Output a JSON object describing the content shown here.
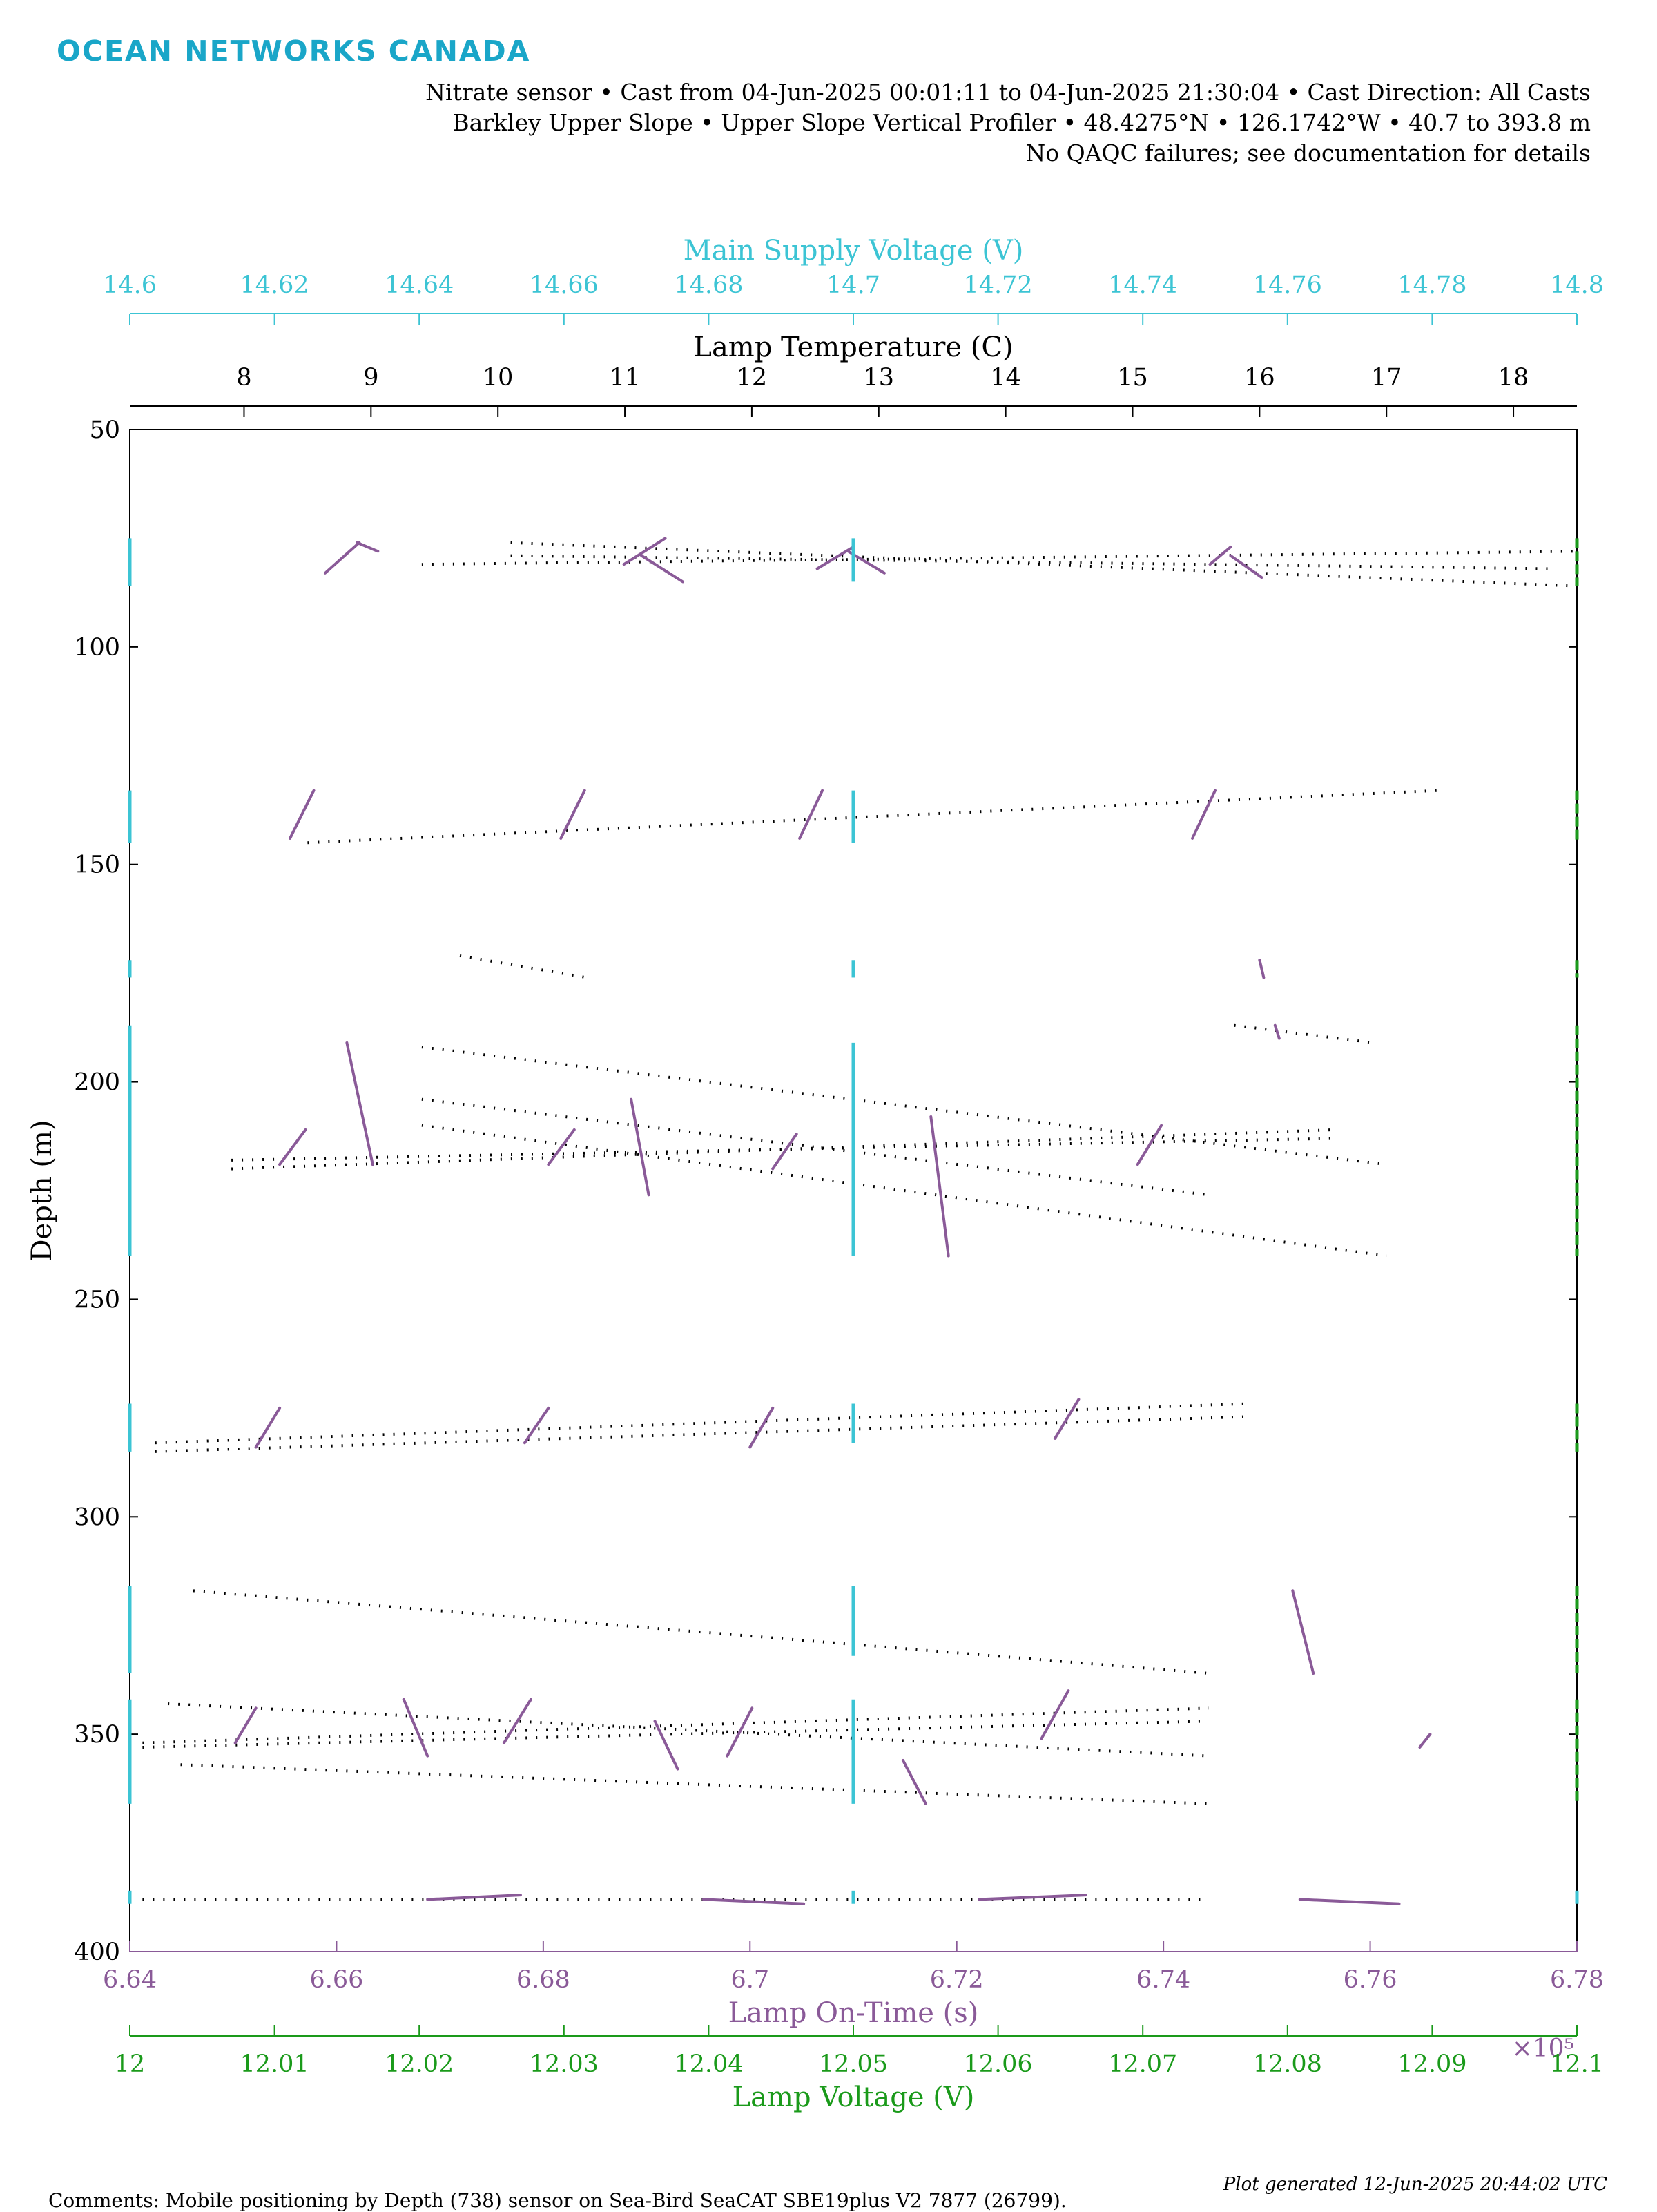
{
  "brand": "OCEAN NETWORKS CANADA",
  "header": {
    "line1": "Nitrate sensor • Cast from 04-Jun-2025 00:01:11 to 04-Jun-2025 21:30:04 • Cast Direction: All Casts",
    "line2": "Barkley Upper Slope • Upper Slope Vertical Profiler • 48.4275°N • 126.1742°W • 40.7 to 393.8 m",
    "line3": "No QAQC failures; see documentation for details"
  },
  "footer": {
    "comments": "Comments: Mobile positioning by Depth (738) sensor on Sea-Bird SeaCAT SBE19plus V2 7877 (26799).",
    "generated": "Plot generated 12-Jun-2025 20:44:02 UTC"
  },
  "colors": {
    "brand": "#1aa6c8",
    "supply_voltage": "#3cc4d4",
    "lamp_on_time": "#8a5a98",
    "lamp_voltage": "#1a9a1a",
    "lamp_temperature": "#000000"
  },
  "chart_data": {
    "type": "scatter",
    "ylabel": "Depth (m)",
    "ylim": [
      50,
      400
    ],
    "yreversed": true,
    "yticks": [
      "50",
      "100",
      "150",
      "200",
      "250",
      "300",
      "350",
      "400"
    ],
    "grid": false,
    "axes": {
      "supply_voltage": {
        "label": "Main Supply Voltage (V)",
        "range": [
          14.6,
          14.8
        ],
        "ticks": [
          "14.6",
          "14.62",
          "14.64",
          "14.66",
          "14.68",
          "14.7",
          "14.72",
          "14.74",
          "14.76",
          "14.78",
          "14.8"
        ]
      },
      "lamp_temperature": {
        "label": "Lamp Temperature (C)",
        "range": [
          7.1,
          18.5
        ],
        "ticks": [
          "8",
          "9",
          "10",
          "11",
          "12",
          "13",
          "14",
          "15",
          "16",
          "17",
          "18"
        ]
      },
      "lamp_on_time": {
        "label": "Lamp On-Time (s)",
        "range": [
          6.64,
          6.78
        ],
        "ticks": [
          "6.64",
          "6.66",
          "6.68",
          "6.7",
          "6.72",
          "6.74",
          "6.76",
          "6.78"
        ],
        "exponent": "×10⁵"
      },
      "lamp_voltage": {
        "label": "Lamp Voltage (V)",
        "range": [
          12,
          12.1
        ],
        "ticks": [
          "12",
          "12.01",
          "12.02",
          "12.03",
          "12.04",
          "12.05",
          "12.06",
          "12.07",
          "12.08",
          "12.09",
          "12.1"
        ]
      }
    },
    "series": [
      {
        "name": "Lamp Temperature (C)",
        "marker": "dots",
        "segments": [
          {
            "x": [
              9.4,
              18.5
            ],
            "y": [
              81,
              78
            ]
          },
          {
            "x": [
              10.1,
              18.3
            ],
            "y": [
              79,
              82
            ]
          },
          {
            "x": [
              10.1,
              18.5
            ],
            "y": [
              76,
              86
            ]
          },
          {
            "x": [
              8.5,
              17.4
            ],
            "y": [
              145,
              133
            ]
          },
          {
            "x": [
              9.7,
              10.7
            ],
            "y": [
              171,
              176
            ]
          },
          {
            "x": [
              9.4,
              17.0
            ],
            "y": [
              192,
              219
            ]
          },
          {
            "x": [
              9.4,
              15.6
            ],
            "y": [
              204,
              226
            ]
          },
          {
            "x": [
              9.4,
              17.0
            ],
            "y": [
              210,
              240
            ]
          },
          {
            "x": [
              7.9,
              16.6
            ],
            "y": [
              220,
              211
            ]
          },
          {
            "x": [
              7.9,
              16.6
            ],
            "y": [
              218,
              213
            ]
          },
          {
            "x": [
              15.8,
              16.9
            ],
            "y": [
              187,
              191
            ]
          },
          {
            "x": [
              7.3,
              15.9
            ],
            "y": [
              283,
              274
            ]
          },
          {
            "x": [
              7.3,
              15.9
            ],
            "y": [
              285,
              277
            ]
          },
          {
            "x": [
              7.6,
              15.6
            ],
            "y": [
              317,
              336
            ]
          },
          {
            "x": [
              7.4,
              15.6
            ],
            "y": [
              343,
              355
            ]
          },
          {
            "x": [
              7.2,
              15.6
            ],
            "y": [
              352,
              344
            ]
          },
          {
            "x": [
              7.2,
              15.6
            ],
            "y": [
              353,
              347
            ]
          },
          {
            "x": [
              7.5,
              15.6
            ],
            "y": [
              357,
              366
            ]
          },
          {
            "x": [
              7.2,
              15.6
            ],
            "y": [
              388,
              388
            ]
          }
        ]
      },
      {
        "name": "Lamp On-Time (s)",
        "marker": "line",
        "segments": [
          {
            "x": [
              6.6589,
              6.6622
            ],
            "y": [
              83,
              76
            ]
          },
          {
            "x": [
              6.662,
              6.664
            ],
            "y": [
              76,
              78
            ]
          },
          {
            "x": [
              6.6878,
              6.6918
            ],
            "y": [
              81,
              75
            ]
          },
          {
            "x": [
              6.6895,
              6.6935
            ],
            "y": [
              79,
              85
            ]
          },
          {
            "x": [
              6.7065,
              6.71
            ],
            "y": [
              82,
              77
            ]
          },
          {
            "x": [
              6.7095,
              6.713
            ],
            "y": [
              78,
              83
            ]
          },
          {
            "x": [
              6.7445,
              6.7465
            ],
            "y": [
              81,
              77
            ]
          },
          {
            "x": [
              6.7465,
              6.7495
            ],
            "y": [
              79,
              84
            ]
          },
          {
            "x": [
              6.6555,
              6.6578
            ],
            "y": [
              144,
              133
            ]
          },
          {
            "x": [
              6.6817,
              6.684
            ],
            "y": [
              144,
              133
            ]
          },
          {
            "x": [
              6.7048,
              6.707
            ],
            "y": [
              144,
              133
            ]
          },
          {
            "x": [
              6.7428,
              6.745
            ],
            "y": [
              144,
              133
            ]
          },
          {
            "x": [
              6.661,
              6.6635
            ],
            "y": [
              191,
              219
            ]
          },
          {
            "x": [
              6.6545,
              6.657
            ],
            "y": [
              219,
              211
            ]
          },
          {
            "x": [
              6.6805,
              6.683
            ],
            "y": [
              219,
              211
            ]
          },
          {
            "x": [
              6.6885,
              6.6902
            ],
            "y": [
              204,
              226
            ]
          },
          {
            "x": [
              6.7022,
              6.7045
            ],
            "y": [
              220,
              212
            ]
          },
          {
            "x": [
              6.7175,
              6.7192
            ],
            "y": [
              208,
              240
            ]
          },
          {
            "x": [
              6.7375,
              6.7398
            ],
            "y": [
              219,
              210
            ]
          },
          {
            "x": [
              6.7493,
              6.7497
            ],
            "y": [
              172,
              176
            ]
          },
          {
            "x": [
              6.7508,
              6.7512
            ],
            "y": [
              187,
              190
            ]
          },
          {
            "x": [
              6.6522,
              6.6545
            ],
            "y": [
              284,
              275
            ]
          },
          {
            "x": [
              6.6782,
              6.6805
            ],
            "y": [
              283,
              275
            ]
          },
          {
            "x": [
              6.7,
              6.7022
            ],
            "y": [
              284,
              275
            ]
          },
          {
            "x": [
              6.7295,
              6.7318
            ],
            "y": [
              282,
              273
            ]
          },
          {
            "x": [
              6.7525,
              6.7545
            ],
            "y": [
              317,
              336
            ]
          },
          {
            "x": [
              6.6502,
              6.6522
            ],
            "y": [
              352,
              344
            ]
          },
          {
            "x": [
              6.6665,
              6.6688
            ],
            "y": [
              342,
              355
            ]
          },
          {
            "x": [
              6.6762,
              6.6788
            ],
            "y": [
              352,
              342
            ]
          },
          {
            "x": [
              6.6908,
              6.693
            ],
            "y": [
              347,
              358
            ]
          },
          {
            "x": [
              6.6978,
              6.7002
            ],
            "y": [
              355,
              344
            ]
          },
          {
            "x": [
              6.7148,
              6.717
            ],
            "y": [
              356,
              366
            ]
          },
          {
            "x": [
              6.7282,
              6.7308
            ],
            "y": [
              351,
              340
            ]
          },
          {
            "x": [
              6.7648,
              6.7658
            ],
            "y": [
              353,
              350
            ]
          },
          {
            "x": [
              6.6688,
              6.6778
            ],
            "y": [
              388,
              387
            ]
          },
          {
            "x": [
              6.6955,
              6.7052
            ],
            "y": [
              388,
              389
            ]
          },
          {
            "x": [
              6.7222,
              6.7325
            ],
            "y": [
              388,
              387
            ]
          },
          {
            "x": [
              6.7532,
              6.7628
            ],
            "y": [
              388,
              389
            ]
          }
        ]
      },
      {
        "name": "Main Supply Voltage (V)",
        "marker": "vertical",
        "segments": [
          {
            "x": [
              14.7,
              14.7
            ],
            "y": [
              75,
              85
            ]
          },
          {
            "x": [
              14.7,
              14.7
            ],
            "y": [
              133,
              145
            ]
          },
          {
            "x": [
              14.7,
              14.7
            ],
            "y": [
              172,
              176
            ]
          },
          {
            "x": [
              14.7,
              14.7
            ],
            "y": [
              191,
              240
            ]
          },
          {
            "x": [
              14.7,
              14.7
            ],
            "y": [
              274,
              283
            ]
          },
          {
            "x": [
              14.7,
              14.7
            ],
            "y": [
              316,
              332
            ]
          },
          {
            "x": [
              14.7,
              14.7
            ],
            "y": [
              342,
              366
            ]
          },
          {
            "x": [
              14.7,
              14.7
            ],
            "y": [
              386,
              389
            ]
          },
          {
            "x": [
              14.6,
              14.6
            ],
            "y": [
              75,
              86
            ]
          },
          {
            "x": [
              14.6,
              14.6
            ],
            "y": [
              133,
              145
            ]
          },
          {
            "x": [
              14.6,
              14.6
            ],
            "y": [
              172,
              176
            ]
          },
          {
            "x": [
              14.6,
              14.6
            ],
            "y": [
              187,
              240
            ]
          },
          {
            "x": [
              14.6,
              14.6
            ],
            "y": [
              274,
              285
            ]
          },
          {
            "x": [
              14.6,
              14.6
            ],
            "y": [
              316,
              336
            ]
          },
          {
            "x": [
              14.6,
              14.6
            ],
            "y": [
              342,
              366
            ]
          },
          {
            "x": [
              14.6,
              14.6
            ],
            "y": [
              386,
              389
            ]
          },
          {
            "x": [
              14.8,
              14.8
            ],
            "y": [
              386,
              389
            ]
          }
        ]
      },
      {
        "name": "Lamp Voltage (V)",
        "marker": "vertical-dashed",
        "segments": [
          {
            "x": [
              12.1,
              12.1
            ],
            "y": [
              75,
              86
            ]
          },
          {
            "x": [
              12.1,
              12.1
            ],
            "y": [
              133,
              145
            ]
          },
          {
            "x": [
              12.1,
              12.1
            ],
            "y": [
              172,
              176
            ]
          },
          {
            "x": [
              12.1,
              12.1
            ],
            "y": [
              187,
              240
            ]
          },
          {
            "x": [
              12.1,
              12.1
            ],
            "y": [
              274,
              285
            ]
          },
          {
            "x": [
              12.1,
              12.1
            ],
            "y": [
              316,
              336
            ]
          },
          {
            "x": [
              12.1,
              12.1
            ],
            "y": [
              342,
              366
            ]
          }
        ]
      }
    ]
  }
}
